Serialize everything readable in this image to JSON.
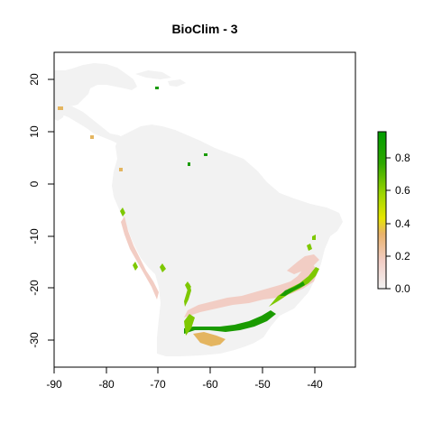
{
  "map": {
    "title": "BioClim -  3",
    "x_ticks": [
      "-90",
      "-80",
      "-70",
      "-60",
      "-50",
      "-40"
    ],
    "y_ticks": [
      "20",
      "10",
      "0",
      "-10",
      "-20",
      "-30"
    ],
    "x_range": [
      -90,
      -32
    ],
    "y_range": [
      -35,
      25
    ],
    "land_color": "#f2f2f2",
    "low_suit_color": "#f2cdc4",
    "mid_suit_color": "#e4b560",
    "high_suit_color": "#7ec800",
    "top_suit_color": "#1a9b00"
  },
  "legend": {
    "labels": [
      "0.8",
      "0.6",
      "0.4",
      "0.2",
      "0.0"
    ],
    "range": [
      0,
      0.95
    ],
    "colors": [
      "#f2f2f2",
      "#f2cdc4",
      "#e9b26a",
      "#e6e600",
      "#9fd600",
      "#2ea800",
      "#009c00"
    ]
  }
}
